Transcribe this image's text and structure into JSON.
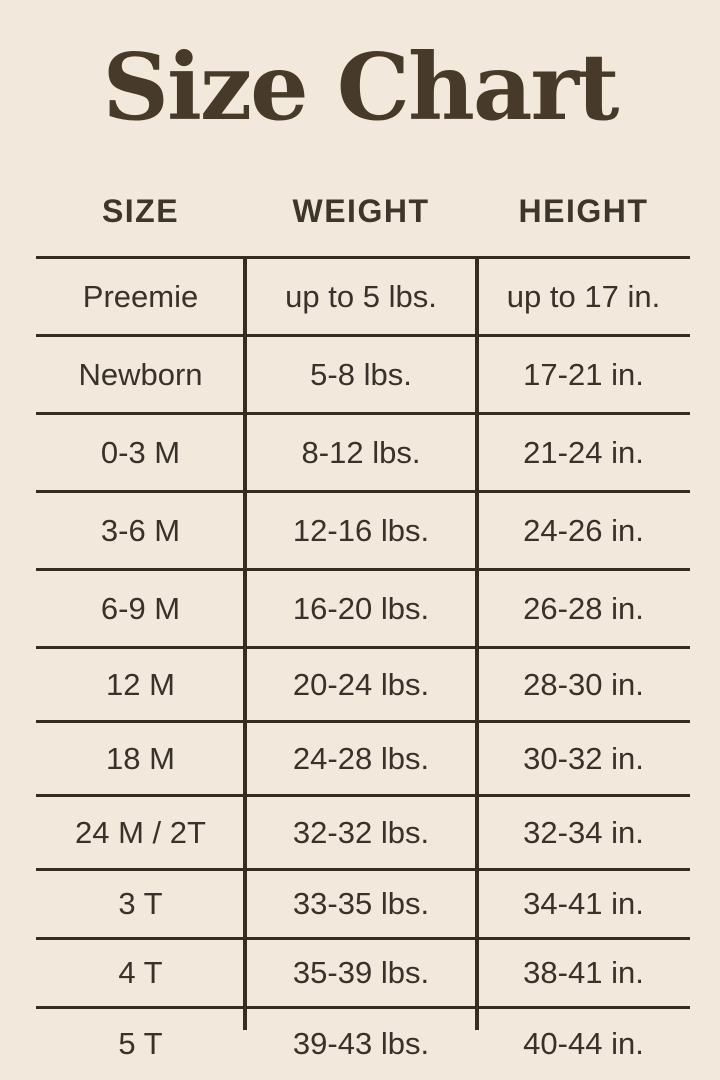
{
  "title": "Size Chart",
  "chart_data": {
    "type": "table",
    "title": "Size Chart",
    "columns": [
      "SIZE",
      "WEIGHT",
      "HEIGHT"
    ],
    "rows": [
      [
        "Preemie",
        "up to 5 lbs.",
        "up to 17 in."
      ],
      [
        "Newborn",
        "5-8 lbs.",
        "17-21 in."
      ],
      [
        "0-3 M",
        "8-12 lbs.",
        "21-24 in."
      ],
      [
        "3-6 M",
        "12-16 lbs.",
        "24-26 in."
      ],
      [
        "6-9 M",
        "16-20 lbs.",
        "26-28 in."
      ],
      [
        "12 M",
        "20-24 lbs.",
        "28-30 in."
      ],
      [
        "18 M",
        "24-28 lbs.",
        "30-32 in."
      ],
      [
        "24 M / 2T",
        "32-32 lbs.",
        "32-34 in."
      ],
      [
        "3 T",
        "33-35 lbs.",
        "34-41 in."
      ],
      [
        "4 T",
        "35-39 lbs.",
        "38-41 in."
      ],
      [
        "5 T",
        "39-43 lbs.",
        "40-44 in."
      ]
    ]
  },
  "colors": {
    "background": "#f2e9dc",
    "title_text": "#483a28",
    "table_text": "#3a322a",
    "grid_line": "#362d22"
  }
}
